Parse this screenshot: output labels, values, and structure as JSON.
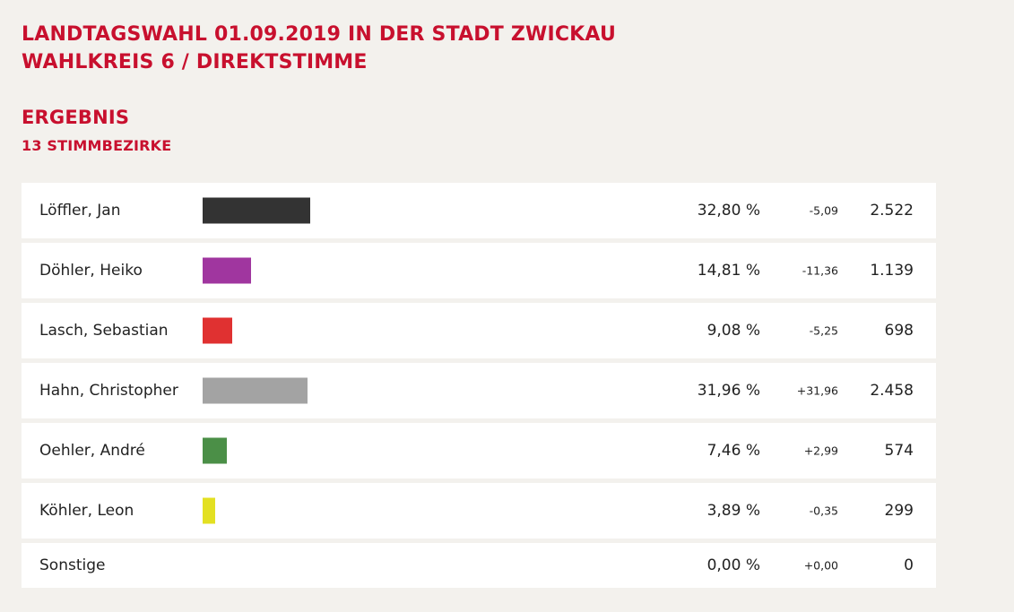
{
  "header": {
    "title_line1": "LANDTAGSWAHL 01.09.2019 IN DER STADT ZWICKAU",
    "title_line2": "WAHLKREIS 6 / DIREKTSTIMME",
    "section": "ERGEBNIS",
    "subsection": "13 STIMMBEZIRKE"
  },
  "chart_data": {
    "type": "bar",
    "title": "LANDTAGSWAHL 01.09.2019 IN DER STADT ZWICKAU",
    "subtitle": "WAHLKREIS 6 / DIREKTSTIMME",
    "orientation": "horizontal",
    "grid": false,
    "legend": "none",
    "xlim": [
      0,
      100
    ],
    "rows": [
      {
        "name": "Löffler, Jan",
        "pct_value": 32.8,
        "pct_label": "32,80 %",
        "diff": "-5,09",
        "votes": "2.522",
        "color": "#333333"
      },
      {
        "name": "Döhler, Heiko",
        "pct_value": 14.81,
        "pct_label": "14,81 %",
        "diff": "-11,36",
        "votes": "1.139",
        "color": "#a0369f"
      },
      {
        "name": "Lasch, Sebastian",
        "pct_value": 9.08,
        "pct_label": "9,08 %",
        "diff": "-5,25",
        "votes": "698",
        "color": "#e03131"
      },
      {
        "name": "Hahn, Christopher",
        "pct_value": 31.96,
        "pct_label": "31,96 %",
        "diff": "+31,96",
        "votes": "2.458",
        "color": "#a3a3a3"
      },
      {
        "name": "Oehler, André",
        "pct_value": 7.46,
        "pct_label": "7,46 %",
        "diff": "+2,99",
        "votes": "574",
        "color": "#4b8f47"
      },
      {
        "name": "Köhler, Leon",
        "pct_value": 3.89,
        "pct_label": "3,89 %",
        "diff": "-0,35",
        "votes": "299",
        "color": "#e3e022"
      },
      {
        "name": "Sonstige",
        "pct_value": 0.0,
        "pct_label": "0,00 %",
        "diff": "+0,00",
        "votes": "0",
        "color": ""
      }
    ]
  }
}
